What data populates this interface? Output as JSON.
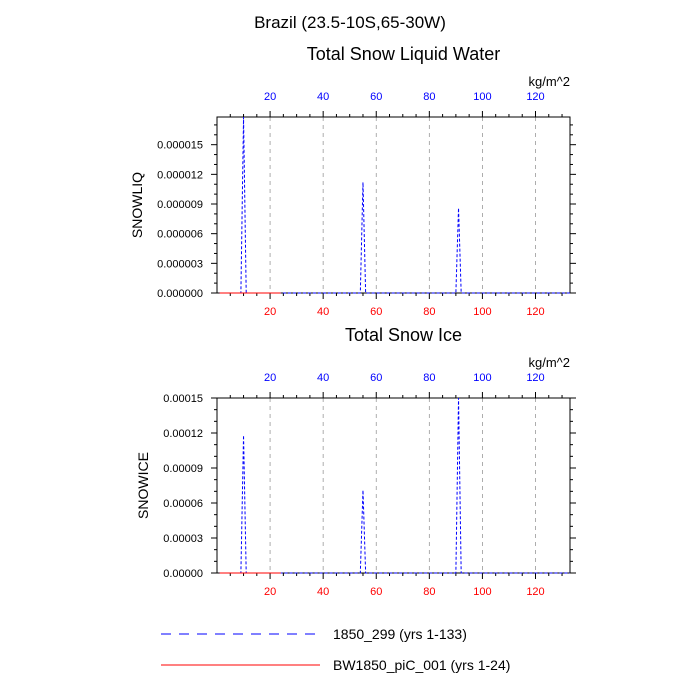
{
  "page": {
    "title": "Brazil (23.5-10S,65-30W)"
  },
  "colors": {
    "series1": "#0000ff",
    "series2": "#ff0000",
    "grid": "#999999",
    "top_tick_labels": "#0000ff",
    "bottom_tick_labels": "#ff0000",
    "axis": "#000000"
  },
  "legend": {
    "placement": "bottom",
    "items": [
      {
        "label": "1850_299 (yrs 1-133)",
        "color": "#0000ff",
        "style": "dashed"
      },
      {
        "label": "BW1850_piC_001 (yrs 1-24)",
        "color": "#ff0000",
        "style": "solid"
      }
    ]
  },
  "chart_data": [
    {
      "type": "line",
      "title": "Total Snow Liquid Water",
      "units": "kg/m^2",
      "ylabel": "SNOWLIQ",
      "xlabel": "",
      "xlim": [
        0,
        133
      ],
      "ylim": [
        0,
        1.78e-05
      ],
      "yticks": [
        "0.000000",
        "0.000003",
        "0.000006",
        "0.000009",
        "0.000012",
        "0.000015"
      ],
      "ytick_values": [
        0,
        3e-06,
        6e-06,
        9e-06,
        1.2e-05,
        1.5e-05
      ],
      "xticks_bottom": [
        "20",
        "40",
        "60",
        "80",
        "100",
        "120"
      ],
      "xticks_top": [
        "20",
        "40",
        "60",
        "80",
        "100",
        "120"
      ],
      "xtick_values": [
        20,
        40,
        60,
        80,
        100,
        120
      ],
      "grid": "vertical dashed",
      "series": [
        {
          "name": "1850_299 (yrs 1-133)",
          "color": "#0000ff",
          "style": "dashed",
          "x": [
            1,
            8,
            9,
            10,
            11,
            53,
            54,
            55,
            56,
            89,
            90,
            91,
            92,
            133
          ],
          "y": [
            0,
            0,
            0,
            1.78e-05,
            0,
            0,
            0,
            1.12e-05,
            0,
            0,
            0,
            8.6e-06,
            0,
            0
          ]
        },
        {
          "name": "BW1850_piC_001 (yrs 1-24)",
          "color": "#ff0000",
          "style": "solid",
          "x": [
            1,
            24
          ],
          "y": [
            0,
            0
          ]
        }
      ]
    },
    {
      "type": "line",
      "title": "Total Snow Ice",
      "units": "kg/m^2",
      "ylabel": "SNOWICE",
      "xlabel": "",
      "xlim": [
        0,
        133
      ],
      "ylim": [
        0,
        0.00015
      ],
      "yticks": [
        "0.00000",
        "0.00003",
        "0.00006",
        "0.00009",
        "0.00012",
        "0.00015"
      ],
      "ytick_values": [
        0,
        3e-05,
        6e-05,
        9e-05,
        0.00012,
        0.00015
      ],
      "xticks_bottom": [
        "20",
        "40",
        "60",
        "80",
        "100",
        "120"
      ],
      "xticks_top": [
        "20",
        "40",
        "60",
        "80",
        "100",
        "120"
      ],
      "xtick_values": [
        20,
        40,
        60,
        80,
        100,
        120
      ],
      "grid": "vertical dashed",
      "series": [
        {
          "name": "1850_299 (yrs 1-133)",
          "color": "#0000ff",
          "style": "dashed",
          "x": [
            1,
            8,
            9,
            10,
            11,
            53,
            54,
            55,
            56,
            89,
            90,
            91,
            92,
            133
          ],
          "y": [
            0,
            0,
            0,
            0.000118,
            0,
            0,
            0,
            7.1e-05,
            0,
            0,
            0,
            0.00015,
            0,
            0
          ]
        },
        {
          "name": "BW1850_piC_001 (yrs 1-24)",
          "color": "#ff0000",
          "style": "solid",
          "x": [
            1,
            24
          ],
          "y": [
            0,
            0
          ]
        }
      ]
    }
  ]
}
